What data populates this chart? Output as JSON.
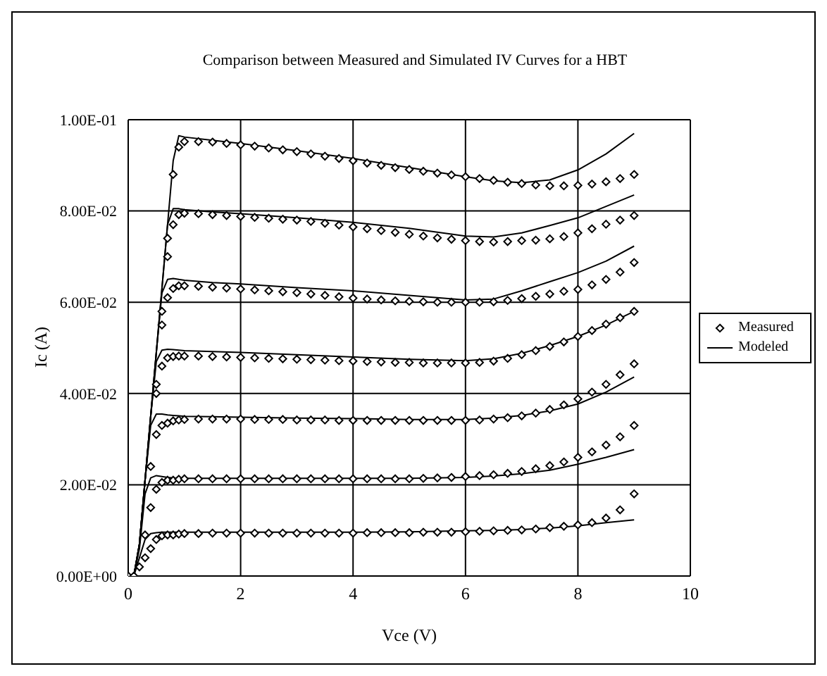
{
  "chart_data": {
    "type": "scatter",
    "title": "Comparison between Measured and Simulated IV Curves for a HBT",
    "xlabel": "Vce (V)",
    "ylabel": "Ic (A)",
    "xlim": [
      0,
      10
    ],
    "xticks": [
      0,
      2,
      4,
      6,
      8,
      10
    ],
    "ylim": [
      0,
      0.1
    ],
    "yticks": [
      {
        "value": 0,
        "label": "0.00E+00"
      },
      {
        "value": 0.02,
        "label": "2.00E-02"
      },
      {
        "value": 0.04,
        "label": "4.00E-02"
      },
      {
        "value": 0.06,
        "label": "6.00E-02"
      },
      {
        "value": 0.08,
        "label": "8.00E-02"
      },
      {
        "value": 0.1,
        "label": "1.00E-01"
      }
    ],
    "grid": true,
    "legend": "right",
    "x": [
      0,
      0.1,
      0.2,
      0.3,
      0.4,
      0.5,
      0.6,
      0.7,
      0.8,
      0.9,
      1,
      1.25,
      1.5,
      1.75,
      2,
      2.25,
      2.5,
      2.75,
      3,
      3.25,
      3.5,
      3.75,
      4,
      4.25,
      4.5,
      4.75,
      5,
      5.25,
      5.5,
      5.75,
      6,
      6.25,
      6.5,
      6.75,
      7,
      7.25,
      7.5,
      7.75,
      8,
      8.25,
      8.5,
      8.75,
      9
    ],
    "series": [
      {
        "name": "Measured",
        "marker": "diamond",
        "color": "#000000",
        "values": [
          0,
          0,
          0.002,
          0.004,
          0.006,
          0.008,
          0.0088,
          0.009,
          0.009,
          0.0092,
          0.0093,
          0.0093,
          0.0094,
          0.0094,
          0.0094,
          0.0094,
          0.0094,
          0.0094,
          0.0094,
          0.0094,
          0.0094,
          0.0094,
          0.0094,
          0.0095,
          0.0095,
          0.0095,
          0.0095,
          0.0096,
          0.0096,
          0.0096,
          0.0097,
          0.0098,
          0.0099,
          0.01,
          0.0101,
          0.0103,
          0.0106,
          0.0109,
          0.0112,
          0.0117,
          0.0127,
          0.0145,
          0.018
        ]
      },
      {
        "marker": "diamond",
        "color": "#000000",
        "x": [
          0.3,
          0.4,
          0.5,
          0.6,
          0.7,
          0.8,
          0.9,
          1,
          1.25,
          1.5,
          1.75,
          2,
          2.25,
          2.5,
          2.75,
          3,
          3.25,
          3.5,
          3.75,
          4,
          4.25,
          4.5,
          4.75,
          5,
          5.25,
          5.5,
          5.75,
          6,
          6.25,
          6.5,
          6.75,
          7,
          7.25,
          7.5,
          7.75,
          8,
          8.25,
          8.5,
          8.75,
          9
        ],
        "values": [
          0.009,
          0.015,
          0.019,
          0.0205,
          0.021,
          0.021,
          0.0212,
          0.0213,
          0.0213,
          0.0213,
          0.0213,
          0.0213,
          0.0213,
          0.0213,
          0.0213,
          0.0213,
          0.0213,
          0.0213,
          0.0213,
          0.0213,
          0.0213,
          0.0213,
          0.0213,
          0.0213,
          0.0214,
          0.0215,
          0.0216,
          0.0218,
          0.022,
          0.0222,
          0.0225,
          0.0229,
          0.0235,
          0.0242,
          0.025,
          0.026,
          0.0272,
          0.0287,
          0.0305,
          0.033
        ]
      },
      {
        "marker": "diamond",
        "color": "#000000",
        "x": [
          0.4,
          0.5,
          0.6,
          0.7,
          0.8,
          0.9,
          1,
          1.25,
          1.5,
          1.75,
          2,
          2.25,
          2.5,
          2.75,
          3,
          3.25,
          3.5,
          3.75,
          4,
          4.25,
          4.5,
          4.75,
          5,
          5.25,
          5.5,
          5.75,
          6,
          6.25,
          6.5,
          6.75,
          7,
          7.25,
          7.5,
          7.75,
          8,
          8.25,
          8.5,
          8.75,
          9
        ],
        "values": [
          0.024,
          0.031,
          0.033,
          0.0335,
          0.034,
          0.0342,
          0.0343,
          0.0344,
          0.0344,
          0.0344,
          0.0344,
          0.0343,
          0.0343,
          0.0343,
          0.0342,
          0.0342,
          0.0342,
          0.0341,
          0.0341,
          0.0341,
          0.0341,
          0.0341,
          0.0341,
          0.0341,
          0.0341,
          0.0341,
          0.0341,
          0.0342,
          0.0344,
          0.0347,
          0.0351,
          0.0357,
          0.0365,
          0.0375,
          0.0388,
          0.0403,
          0.042,
          0.0441,
          0.0465
        ]
      },
      {
        "marker": "diamond",
        "color": "#000000",
        "x": [
          0.5,
          0.6,
          0.7,
          0.8,
          0.9,
          1,
          1.25,
          1.5,
          1.75,
          2,
          2.25,
          2.5,
          2.75,
          3,
          3.25,
          3.5,
          3.75,
          4,
          4.25,
          4.5,
          4.75,
          5,
          5.25,
          5.5,
          5.75,
          6,
          6.25,
          6.5,
          6.75,
          7,
          7.25,
          7.5,
          7.75,
          8,
          8.25,
          8.5,
          8.75,
          9
        ],
        "values": [
          0.04,
          0.046,
          0.0478,
          0.0481,
          0.0482,
          0.0482,
          0.0482,
          0.0481,
          0.048,
          0.0479,
          0.0478,
          0.0477,
          0.0476,
          0.0475,
          0.0474,
          0.0473,
          0.0472,
          0.0471,
          0.047,
          0.0469,
          0.0468,
          0.0468,
          0.0467,
          0.0467,
          0.0467,
          0.0467,
          0.0468,
          0.0471,
          0.0477,
          0.0485,
          0.0494,
          0.0503,
          0.0513,
          0.0525,
          0.0538,
          0.0552,
          0.0566,
          0.058
        ]
      },
      {
        "marker": "diamond",
        "color": "#000000",
        "x": [
          0.5,
          0.6,
          0.7,
          0.8,
          0.9,
          1,
          1.25,
          1.5,
          1.75,
          2,
          2.25,
          2.5,
          2.75,
          3,
          3.25,
          3.5,
          3.75,
          4,
          4.25,
          4.5,
          4.75,
          5,
          5.25,
          5.5,
          5.75,
          6,
          6.25,
          6.5,
          6.75,
          7,
          7.25,
          7.5,
          7.75,
          8,
          8.25,
          8.5,
          8.75,
          9
        ],
        "values": [
          0.042,
          0.055,
          0.061,
          0.063,
          0.0636,
          0.0636,
          0.0635,
          0.0633,
          0.0631,
          0.0629,
          0.0627,
          0.0625,
          0.0623,
          0.0621,
          0.0618,
          0.0615,
          0.0612,
          0.0609,
          0.0607,
          0.0605,
          0.0603,
          0.0602,
          0.0601,
          0.06,
          0.06,
          0.06,
          0.06,
          0.0601,
          0.0604,
          0.0608,
          0.0613,
          0.0618,
          0.0624,
          0.0628,
          0.0638,
          0.065,
          0.0666,
          0.0687
        ]
      },
      {
        "marker": "diamond",
        "color": "#000000",
        "x": [
          0.6,
          0.7,
          0.8,
          0.9,
          1,
          1.25,
          1.5,
          1.75,
          2,
          2.25,
          2.5,
          2.75,
          3,
          3.25,
          3.5,
          3.75,
          4,
          4.25,
          4.5,
          4.75,
          5,
          5.25,
          5.5,
          5.75,
          6,
          6.25,
          6.5,
          6.75,
          7,
          7.25,
          7.5,
          7.75,
          8,
          8.25,
          8.5,
          8.75,
          9
        ],
        "values": [
          0.058,
          0.07,
          0.077,
          0.0792,
          0.0795,
          0.0794,
          0.0792,
          0.079,
          0.0788,
          0.0786,
          0.0784,
          0.0782,
          0.078,
          0.0777,
          0.0773,
          0.0769,
          0.0765,
          0.0761,
          0.0757,
          0.0753,
          0.0749,
          0.0745,
          0.0741,
          0.0738,
          0.0735,
          0.0733,
          0.0732,
          0.0733,
          0.0735,
          0.0736,
          0.0739,
          0.0744,
          0.0752,
          0.0761,
          0.0771,
          0.078,
          0.079
        ]
      },
      {
        "marker": "diamond",
        "color": "#000000",
        "x": [
          0.7,
          0.8,
          0.9,
          1,
          1.25,
          1.5,
          1.75,
          2,
          2.25,
          2.5,
          2.75,
          3,
          3.25,
          3.5,
          3.75,
          4,
          4.25,
          4.5,
          4.75,
          5,
          5.25,
          5.5,
          5.75,
          6,
          6.25,
          6.5,
          6.75,
          7,
          7.25,
          7.5,
          7.75,
          8,
          8.25,
          8.5,
          8.75,
          9
        ],
        "values": [
          0.074,
          0.088,
          0.094,
          0.0952,
          0.0952,
          0.0951,
          0.0948,
          0.0945,
          0.0942,
          0.0938,
          0.0934,
          0.093,
          0.0925,
          0.092,
          0.0915,
          0.091,
          0.0905,
          0.09,
          0.0895,
          0.0891,
          0.0887,
          0.0883,
          0.0879,
          0.0875,
          0.0871,
          0.0867,
          0.0863,
          0.086,
          0.0857,
          0.0855,
          0.0855,
          0.0856,
          0.0859,
          0.0864,
          0.0871,
          0.088
        ]
      },
      {
        "name": "Modeled",
        "type": "line",
        "marker": "none",
        "color": "#000000",
        "x": [
          0,
          0.1,
          0.2,
          0.3,
          0.4,
          0.5,
          0.6,
          0.7,
          0.8,
          0.9,
          1,
          1.5,
          2,
          3,
          4,
          5,
          6,
          6.5,
          7,
          7.5,
          8,
          8.5,
          9
        ],
        "values": [
          0,
          0,
          0.004,
          0.008,
          0.0093,
          0.0095,
          0.0096,
          0.0096,
          0.0096,
          0.0096,
          0.0096,
          0.0096,
          0.0096,
          0.0096,
          0.0096,
          0.0097,
          0.0099,
          0.01,
          0.0102,
          0.0105,
          0.011,
          0.0117,
          0.0123
        ]
      },
      {
        "type": "line",
        "marker": "none",
        "color": "#000000",
        "x": [
          0,
          0.1,
          0.2,
          0.3,
          0.4,
          0.5,
          0.6,
          0.7,
          0.8,
          0.9,
          1,
          1.5,
          2,
          3,
          4,
          5,
          6,
          6.5,
          7,
          7.5,
          8,
          8.5,
          9
        ],
        "values": [
          0,
          0,
          0.006,
          0.018,
          0.0215,
          0.022,
          0.0218,
          0.0216,
          0.0215,
          0.0214,
          0.0214,
          0.0214,
          0.0214,
          0.0214,
          0.0214,
          0.0214,
          0.0216,
          0.0219,
          0.0224,
          0.0232,
          0.0245,
          0.026,
          0.0277
        ]
      },
      {
        "type": "line",
        "marker": "none",
        "color": "#000000",
        "x": [
          0,
          0.1,
          0.2,
          0.3,
          0.4,
          0.5,
          0.6,
          0.7,
          0.8,
          0.9,
          1,
          1.5,
          2,
          3,
          4,
          5,
          6,
          6.5,
          7,
          7.5,
          8,
          8.5,
          9
        ],
        "values": [
          0,
          0,
          0.007,
          0.021,
          0.033,
          0.0355,
          0.0355,
          0.0353,
          0.0352,
          0.0351,
          0.035,
          0.0349,
          0.0348,
          0.0346,
          0.0345,
          0.0343,
          0.0343,
          0.0346,
          0.0352,
          0.0362,
          0.0377,
          0.0403,
          0.0436
        ]
      },
      {
        "type": "line",
        "marker": "none",
        "color": "#000000",
        "x": [
          0,
          0.1,
          0.2,
          0.3,
          0.4,
          0.5,
          0.6,
          0.7,
          0.8,
          0.9,
          1,
          1.5,
          2,
          3,
          4,
          5,
          6,
          6.5,
          7,
          7.5,
          8,
          8.5,
          9
        ],
        "values": [
          0,
          0,
          0.007,
          0.021,
          0.035,
          0.047,
          0.0495,
          0.0497,
          0.0496,
          0.0495,
          0.0494,
          0.0492,
          0.049,
          0.0485,
          0.048,
          0.0475,
          0.0472,
          0.0476,
          0.0488,
          0.0505,
          0.0525,
          0.055,
          0.058
        ]
      },
      {
        "type": "line",
        "marker": "none",
        "color": "#000000",
        "x": [
          0,
          0.1,
          0.2,
          0.3,
          0.4,
          0.5,
          0.6,
          0.7,
          0.8,
          0.9,
          1,
          1.5,
          2,
          3,
          4,
          5,
          6,
          6.5,
          7,
          7.5,
          8,
          8.5,
          9
        ],
        "values": [
          0,
          0,
          0.007,
          0.021,
          0.035,
          0.049,
          0.062,
          0.065,
          0.0652,
          0.065,
          0.0648,
          0.0643,
          0.064,
          0.0632,
          0.0625,
          0.0615,
          0.0605,
          0.0607,
          0.0625,
          0.0645,
          0.0665,
          0.069,
          0.0723
        ]
      },
      {
        "type": "line",
        "marker": "none",
        "color": "#000000",
        "x": [
          0,
          0.1,
          0.2,
          0.3,
          0.4,
          0.5,
          0.6,
          0.7,
          0.8,
          0.9,
          1,
          1.5,
          2,
          3,
          4,
          5,
          6,
          6.5,
          7,
          7.5,
          8,
          8.5,
          9
        ],
        "values": [
          0,
          0,
          0.007,
          0.021,
          0.035,
          0.049,
          0.063,
          0.077,
          0.0805,
          0.0805,
          0.0803,
          0.0798,
          0.0794,
          0.0785,
          0.0775,
          0.0762,
          0.0745,
          0.0743,
          0.0752,
          0.0768,
          0.0785,
          0.081,
          0.0835
        ]
      },
      {
        "type": "line",
        "marker": "none",
        "color": "#000000",
        "x": [
          0,
          0.1,
          0.2,
          0.3,
          0.4,
          0.5,
          0.6,
          0.7,
          0.8,
          0.9,
          1,
          1.5,
          2,
          3,
          4,
          5,
          6,
          6.5,
          7,
          7.5,
          8,
          8.5,
          9
        ],
        "values": [
          0,
          0,
          0.007,
          0.021,
          0.035,
          0.049,
          0.063,
          0.077,
          0.091,
          0.0965,
          0.0962,
          0.0955,
          0.0948,
          0.0932,
          0.0915,
          0.0895,
          0.0875,
          0.0866,
          0.0862,
          0.0868,
          0.089,
          0.0925,
          0.097
        ]
      }
    ]
  }
}
